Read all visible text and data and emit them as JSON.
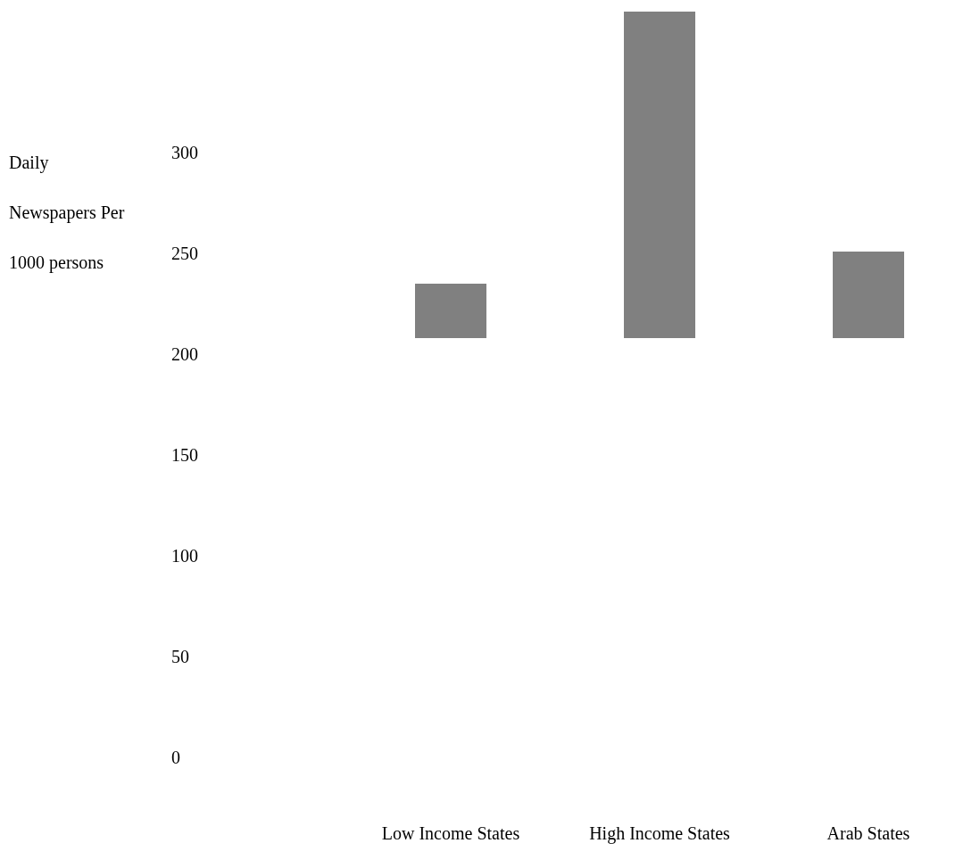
{
  "chart_data": {
    "type": "bar",
    "ylabel": "Daily Newspapers Per 1000 persons",
    "categories": [
      "Low Income States",
      "High Income States",
      "Arab States"
    ],
    "base": [
      208,
      208,
      208
    ],
    "values": [
      27,
      162,
      43
    ],
    "color": "#808080",
    "ylim": [
      0,
      370
    ],
    "yticks": [
      0,
      50,
      100,
      150,
      200,
      250,
      300
    ],
    "grid": false,
    "legend": false
  }
}
